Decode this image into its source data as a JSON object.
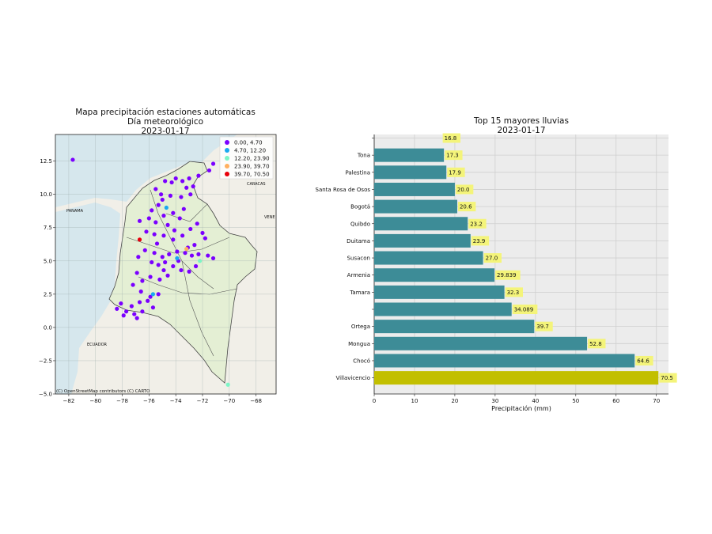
{
  "map": {
    "title_line1": "Mapa precipitación estaciones automáticas",
    "title_line2": "Día meteorológico",
    "title_line3": "2023-01-17",
    "attribution": "(C) OpenStreetMap contributors (C) CARTO",
    "background_labels": [
      "PANAMA",
      "VENE",
      "CARACAS",
      "ECUADOR"
    ],
    "legend": [
      {
        "label": "0.00, 4.70",
        "color": "#7a00ff"
      },
      {
        "label": "4.70, 12.20",
        "color": "#1aa9f0"
      },
      {
        "label": "12.20, 23.90",
        "color": "#7cf5c6"
      },
      {
        "label": "23.90, 39.70",
        "color": "#ffb060"
      },
      {
        "label": "39.70, 70.50",
        "color": "#e8000b"
      }
    ]
  },
  "chart_data": [
    {
      "type": "scatter",
      "title": "Mapa precipitación estaciones automáticas\nDía meteorológico\n2023-01-17",
      "xlabel": "",
      "ylabel": "",
      "xlim": [
        -83,
        -66.5
      ],
      "ylim": [
        -5,
        14.5
      ],
      "x_ticks": [
        -82,
        -80,
        -78,
        -76,
        -74,
        -72,
        -70,
        -68
      ],
      "y_ticks": [
        -5.0,
        -2.5,
        0.0,
        2.5,
        5.0,
        7.5,
        10.0,
        12.5
      ],
      "x_tick_labels": [
        "−82",
        "−80",
        "−78",
        "−76",
        "−74",
        "−72",
        "−70",
        "−68"
      ],
      "y_tick_labels": [
        "−5.0",
        "−2.5",
        "0.0",
        "2.5",
        "5.0",
        "7.5",
        "10.0",
        "12.5"
      ],
      "series": [
        {
          "name": "0.00, 4.70",
          "color": "#7a00ff",
          "points": [
            [
              -81.7,
              12.6
            ],
            [
              -71.2,
              12.3
            ],
            [
              -71.5,
              11.8
            ],
            [
              -72.3,
              11.4
            ],
            [
              -73.0,
              11.2
            ],
            [
              -74.0,
              11.2
            ],
            [
              -74.8,
              11.0
            ],
            [
              -75.5,
              10.4
            ],
            [
              -74.3,
              10.9
            ],
            [
              -73.2,
              10.5
            ],
            [
              -72.9,
              10.0
            ],
            [
              -73.6,
              9.8
            ],
            [
              -74.4,
              9.9
            ],
            [
              -75.0,
              9.6
            ],
            [
              -75.3,
              9.2
            ],
            [
              -75.8,
              8.8
            ],
            [
              -74.9,
              8.4
            ],
            [
              -74.2,
              8.6
            ],
            [
              -73.4,
              8.9
            ],
            [
              -73.7,
              8.2
            ],
            [
              -74.6,
              7.7
            ],
            [
              -75.5,
              7.9
            ],
            [
              -76.0,
              8.2
            ],
            [
              -76.7,
              8.0
            ],
            [
              -76.2,
              7.2
            ],
            [
              -75.6,
              7.0
            ],
            [
              -74.9,
              6.9
            ],
            [
              -74.2,
              6.6
            ],
            [
              -73.5,
              6.9
            ],
            [
              -72.9,
              7.4
            ],
            [
              -72.4,
              7.8
            ],
            [
              -72.0,
              7.1
            ],
            [
              -71.8,
              6.7
            ],
            [
              -72.6,
              6.2
            ],
            [
              -73.1,
              6.0
            ],
            [
              -73.3,
              5.6
            ],
            [
              -72.8,
              5.4
            ],
            [
              -72.3,
              5.5
            ],
            [
              -71.6,
              5.4
            ],
            [
              -71.2,
              5.2
            ],
            [
              -73.9,
              5.7
            ],
            [
              -74.5,
              5.5
            ],
            [
              -75.0,
              5.3
            ],
            [
              -75.6,
              5.6
            ],
            [
              -76.3,
              5.8
            ],
            [
              -76.8,
              5.3
            ],
            [
              -75.8,
              4.9
            ],
            [
              -75.3,
              4.7
            ],
            [
              -74.9,
              4.3
            ],
            [
              -74.2,
              4.6
            ],
            [
              -73.6,
              4.3
            ],
            [
              -73.0,
              4.2
            ],
            [
              -72.5,
              4.6
            ],
            [
              -74.6,
              3.9
            ],
            [
              -75.2,
              3.6
            ],
            [
              -75.9,
              3.8
            ],
            [
              -76.5,
              3.5
            ],
            [
              -76.9,
              4.1
            ],
            [
              -77.2,
              3.2
            ],
            [
              -76.6,
              2.7
            ],
            [
              -75.9,
              2.3
            ],
            [
              -75.3,
              2.5
            ],
            [
              -76.1,
              2.0
            ],
            [
              -76.7,
              1.9
            ],
            [
              -77.3,
              1.6
            ],
            [
              -77.7,
              1.2
            ],
            [
              -77.1,
              1.0
            ],
            [
              -76.5,
              1.2
            ],
            [
              -75.7,
              1.5
            ],
            [
              -78.1,
              1.8
            ],
            [
              -78.4,
              1.4
            ],
            [
              -77.9,
              0.9
            ],
            [
              -76.9,
              0.7
            ],
            [
              -74.8,
              4.9
            ],
            [
              -73.8,
              5.0
            ],
            [
              -75.4,
              6.3
            ],
            [
              -74.1,
              7.3
            ],
            [
              -75.1,
              10.0
            ],
            [
              -73.5,
              11.0
            ],
            [
              -72.7,
              10.6
            ]
          ]
        },
        {
          "name": "4.70, 12.20",
          "color": "#1aa9f0",
          "points": [
            [
              -75.7,
              2.5
            ],
            [
              -73.9,
              5.2
            ],
            [
              -74.7,
              9.0
            ]
          ]
        },
        {
          "name": "12.20, 23.90",
          "color": "#7cf5c6",
          "points": [
            [
              -70.1,
              -4.3
            ],
            [
              -72.2,
              5.0
            ]
          ]
        },
        {
          "name": "23.90, 39.70",
          "color": "#ffb060",
          "points": [
            [
              -73.2,
              5.9
            ]
          ]
        },
        {
          "name": "39.70, 70.50",
          "color": "#e8000b",
          "points": [
            [
              -76.7,
              6.6
            ]
          ]
        }
      ]
    },
    {
      "type": "bar",
      "orientation": "horizontal",
      "title": "Top 15 mayores lluvias\n2023-01-17",
      "xlabel": "Precipitación (mm)",
      "ylabel": "",
      "xlim": [
        0,
        73
      ],
      "x_ticks": [
        0,
        10,
        20,
        30,
        40,
        50,
        60,
        70
      ],
      "categories": [
        "",
        "Tona",
        "Palestina",
        "Santa Rosa de Osos",
        "Bogotá",
        "Quibdo",
        "Duitama",
        "Susacon",
        "Armenia",
        "Tamara",
        "",
        "Ortega",
        "Mongua",
        "Chocó",
        "Villavicencio"
      ],
      "values": [
        16.8,
        17.3,
        17.9,
        20.0,
        20.6,
        23.2,
        23.9,
        27.0,
        29.839,
        32.3,
        34.089,
        39.7,
        52.8,
        64.6,
        70.5
      ],
      "value_labels": [
        "16.8",
        "17.3",
        "17.9",
        "20.0",
        "20.6",
        "23.2",
        "23.9",
        "27.0",
        "29.839",
        "32.3",
        "34.089",
        "39.7",
        "52.8",
        "64.6",
        "70.5"
      ],
      "colors": {
        "bar": "#3d8c97",
        "highlight": "#c2bf00",
        "label_box": "#f4f47a",
        "plot_bg": "#ececec"
      }
    }
  ]
}
